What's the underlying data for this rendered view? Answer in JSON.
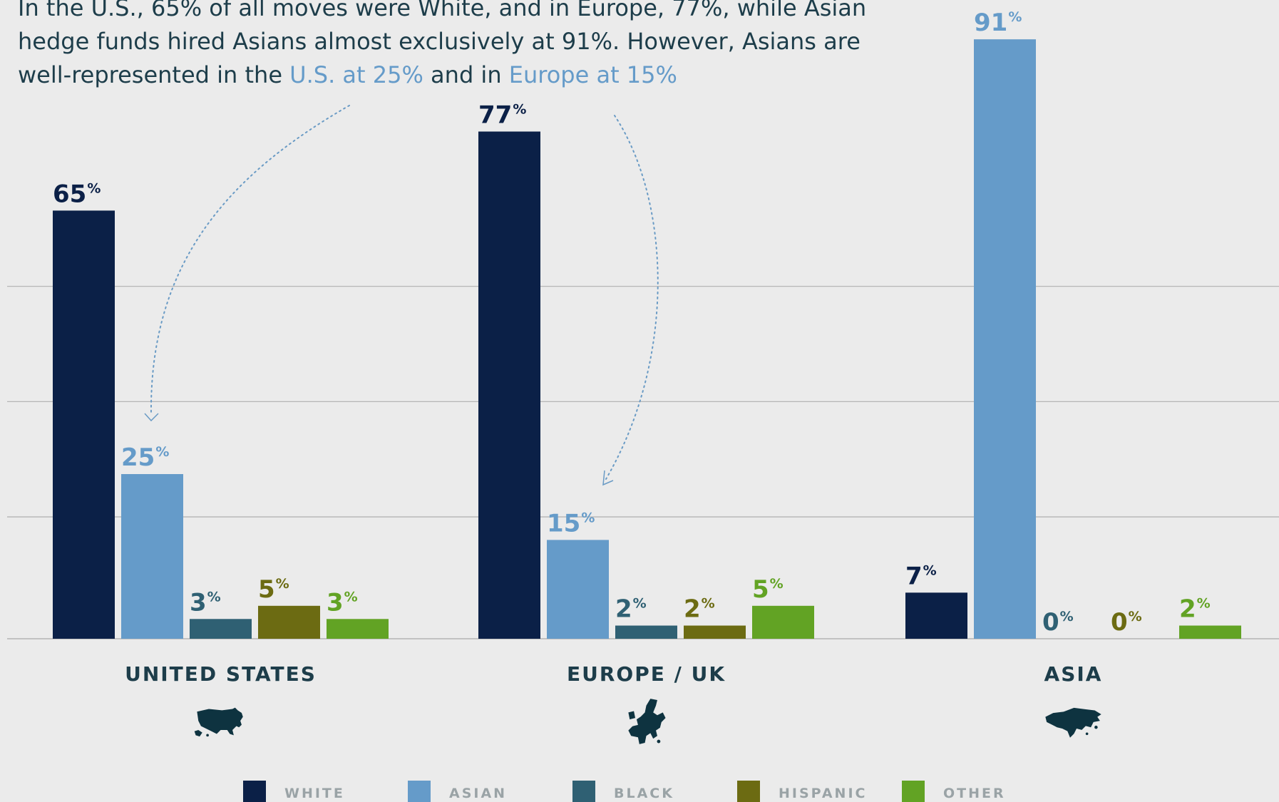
{
  "intro": {
    "line1": "In the U.S., 65% of all moves were White, and in Europe, 77%, while Asian",
    "line2": "hedge funds hired Asians almost exclusively at 91%. However, Asians are",
    "line3_pre": "well-represented in the ",
    "line3_hl1": "U.S. at 25%",
    "line3_mid": " and in ",
    "line3_hl2": "Europe at 15%"
  },
  "colors": {
    "background": "#ebebeb",
    "text": "#1d3d4a",
    "highlight": "#659bc9",
    "gridline": "#b5b5b5",
    "annotation_arrow": "#6a9bc5",
    "map_icon": "#0e3340"
  },
  "chart_data": {
    "type": "bar",
    "categories": [
      "UNITED STATES",
      "EUROPE / UK",
      "ASIA"
    ],
    "category_icons": [
      "usa-map-icon",
      "europe-map-icon",
      "asia-map-icon"
    ],
    "series": [
      {
        "name": "WHITE",
        "color": "#0b2047",
        "values": [
          65,
          77,
          7
        ]
      },
      {
        "name": "ASIAN",
        "color": "#659bc9",
        "values": [
          25,
          15,
          91
        ]
      },
      {
        "name": "BLACK",
        "color": "#2f6073",
        "values": [
          3,
          2,
          0
        ]
      },
      {
        "name": "HISPANIC",
        "color": "#6c6b12",
        "values": [
          5,
          2,
          0
        ]
      },
      {
        "name": "OTHER",
        "color": "#62a324",
        "values": [
          3,
          5,
          2
        ]
      }
    ],
    "value_suffix": "%",
    "ylim": [
      0,
      100
    ],
    "grid": true,
    "legend_position": "bottom",
    "title": "",
    "xlabel": "",
    "ylabel": ""
  }
}
